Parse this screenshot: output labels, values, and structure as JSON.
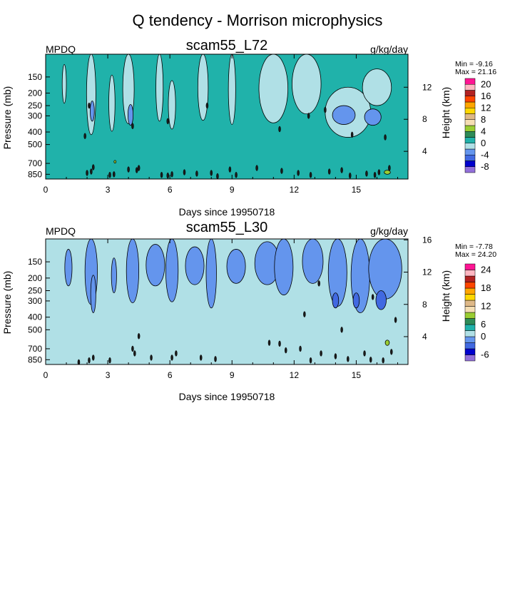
{
  "title": "Q tendency - Morrison microphysics",
  "panels": [
    {
      "id": "l72",
      "left_label": "MPDQ",
      "center_title": "scam55_L72",
      "units": "g/kg/day",
      "stats_min": "Min =  -9.16",
      "stats_max": "Max =  21.16",
      "xlabel": "Days since 19950718",
      "ylabel": "Pressure (mb)",
      "y2label": "Height (km)",
      "background": "#20b2aa",
      "xticks": [
        {
          "v": 0,
          "l": "0"
        },
        {
          "v": 3,
          "l": "3"
        },
        {
          "v": 6,
          "l": "6"
        },
        {
          "v": 9,
          "l": "9"
        },
        {
          "v": 12,
          "l": "12"
        },
        {
          "v": 15,
          "l": "15"
        }
      ],
      "yticks": [
        {
          "v": 150,
          "l": "150"
        },
        {
          "v": 200,
          "l": "200"
        },
        {
          "v": 250,
          "l": "250"
        },
        {
          "v": 300,
          "l": "300"
        },
        {
          "v": 400,
          "l": "400"
        },
        {
          "v": 500,
          "l": "500"
        },
        {
          "v": 700,
          "l": "700"
        },
        {
          "v": 850,
          "l": "850"
        }
      ],
      "y2ticks": [
        {
          "v": 4,
          "l": "4"
        },
        {
          "v": 8,
          "l": "8"
        },
        {
          "v": 12,
          "l": "12"
        }
      ],
      "colorbar": {
        "colors": [
          "#9370db",
          "#0000cd",
          "#4169e1",
          "#6495ed",
          "#b0e0e6",
          "#20b2aa",
          "#2e8b57",
          "#9acd32",
          "#f5deb3",
          "#deb887",
          "#ffd700",
          "#ffa500",
          "#ff4500",
          "#b22222",
          "#ffb6c1",
          "#ff1493"
        ],
        "labels": [
          {
            "after": 1,
            "t": "-8"
          },
          {
            "after": 3,
            "t": "-4"
          },
          {
            "after": 5,
            "t": "0"
          },
          {
            "after": 7,
            "t": "4"
          },
          {
            "after": 9,
            "t": "8"
          },
          {
            "after": 11,
            "t": "12"
          },
          {
            "after": 13,
            "t": "16"
          },
          {
            "after": 15,
            "t": "20"
          }
        ]
      },
      "features": [
        {
          "c": "#b0e0e6",
          "day": 0.9,
          "p": 180,
          "w": 0.2,
          "h": 120
        },
        {
          "c": "#b0e0e6",
          "day": 2.2,
          "p": 230,
          "w": 0.45,
          "h": 380
        },
        {
          "c": "#6495ed",
          "day": 2.25,
          "p": 280,
          "w": 0.2,
          "h": 100
        },
        {
          "c": "#b0e0e6",
          "day": 3.2,
          "p": 270,
          "w": 0.3,
          "h": 250
        },
        {
          "c": "#b0e0e6",
          "day": 4.0,
          "p": 220,
          "w": 0.55,
          "h": 250
        },
        {
          "c": "#6495ed",
          "day": 4.1,
          "p": 300,
          "w": 0.25,
          "h": 110
        },
        {
          "c": "#b0e0e6",
          "day": 5.5,
          "p": 200,
          "w": 0.35,
          "h": 260
        },
        {
          "c": "#b0e0e6",
          "day": 6.1,
          "p": 270,
          "w": 0.35,
          "h": 220
        },
        {
          "c": "#b0e0e6",
          "day": 7.6,
          "p": 200,
          "w": 0.5,
          "h": 250
        },
        {
          "c": "#b0e0e6",
          "day": 9.0,
          "p": 200,
          "w": 0.35,
          "h": 300
        },
        {
          "c": "#b0e0e6",
          "day": 11.0,
          "p": 190,
          "w": 1.4,
          "h": 300
        },
        {
          "c": "#b0e0e6",
          "day": 12.6,
          "p": 190,
          "w": 1.4,
          "h": 200
        },
        {
          "c": "#b0e0e6",
          "day": 14.6,
          "p": 310,
          "w": 2.2,
          "h": 260
        },
        {
          "c": "#6495ed",
          "day": 14.4,
          "p": 300,
          "w": 1.1,
          "h": 100
        },
        {
          "c": "#6495ed",
          "day": 15.8,
          "p": 310,
          "w": 0.8,
          "h": 90
        },
        {
          "c": "#b0e0e6",
          "day": 16.0,
          "p": 190,
          "w": 1.4,
          "h": 120
        },
        {
          "c": "#9acd32",
          "day": 16.5,
          "p": 820,
          "w": 0.3,
          "h": 60
        },
        {
          "c": "#9acd32",
          "day": 3.35,
          "p": 680,
          "w": 0.1,
          "h": 30
        }
      ],
      "specks": [
        [
          2.0,
          830
        ],
        [
          2.2,
          810
        ],
        [
          2.3,
          750
        ],
        [
          3.1,
          860
        ],
        [
          3.3,
          850
        ],
        [
          4.0,
          780
        ],
        [
          4.4,
          790
        ],
        [
          4.5,
          760
        ],
        [
          5.6,
          860
        ],
        [
          5.9,
          870
        ],
        [
          6.1,
          850
        ],
        [
          6.7,
          820
        ],
        [
          7.3,
          840
        ],
        [
          8.0,
          830
        ],
        [
          8.3,
          880
        ],
        [
          8.9,
          780
        ],
        [
          9.2,
          860
        ],
        [
          10.2,
          760
        ],
        [
          11.4,
          800
        ],
        [
          12.2,
          830
        ],
        [
          12.8,
          860
        ],
        [
          13.7,
          810
        ],
        [
          14.3,
          790
        ],
        [
          14.7,
          870
        ],
        [
          15.5,
          840
        ],
        [
          15.9,
          860
        ],
        [
          16.1,
          820
        ],
        [
          16.6,
          760
        ],
        [
          1.9,
          430
        ],
        [
          2.1,
          250
        ],
        [
          4.2,
          360
        ],
        [
          5.9,
          330
        ],
        [
          7.8,
          250
        ],
        [
          11.3,
          380
        ],
        [
          12.7,
          300
        ],
        [
          13.5,
          270
        ],
        [
          14.8,
          420
        ],
        [
          16.4,
          440
        ]
      ]
    },
    {
      "id": "l30",
      "left_label": "MPDQ",
      "center_title": "scam55_L30",
      "units": "g/kg/day",
      "stats_min": "Min =  -7.78",
      "stats_max": "Max =  24.20",
      "xlabel": "Days since 19950718",
      "ylabel": "Pressure (mb)",
      "y2label": "Height (km)",
      "background": "#b0e0e6",
      "xticks": [
        {
          "v": 0,
          "l": "0"
        },
        {
          "v": 3,
          "l": "3"
        },
        {
          "v": 6,
          "l": "6"
        },
        {
          "v": 9,
          "l": "9"
        },
        {
          "v": 12,
          "l": "12"
        },
        {
          "v": 15,
          "l": "15"
        }
      ],
      "yticks": [
        {
          "v": 150,
          "l": "150"
        },
        {
          "v": 200,
          "l": "200"
        },
        {
          "v": 250,
          "l": "250"
        },
        {
          "v": 300,
          "l": "300"
        },
        {
          "v": 400,
          "l": "400"
        },
        {
          "v": 500,
          "l": "500"
        },
        {
          "v": 700,
          "l": "700"
        },
        {
          "v": 850,
          "l": "850"
        }
      ],
      "y2ticks": [
        {
          "v": 4,
          "l": "4"
        },
        {
          "v": 8,
          "l": "8"
        },
        {
          "v": 12,
          "l": "12"
        },
        {
          "v": 16,
          "l": "16"
        }
      ],
      "colorbar": {
        "colors": [
          "#9370db",
          "#0000cd",
          "#4169e1",
          "#6495ed",
          "#b0e0e6",
          "#20b2aa",
          "#2e8b57",
          "#9acd32",
          "#f5deb3",
          "#deb887",
          "#ffd700",
          "#ffa500",
          "#ff4500",
          "#b22222",
          "#ffb6c1",
          "#ff1493"
        ],
        "labels": [
          {
            "after": 1,
            "t": "-6"
          },
          {
            "after": 4,
            "t": "0"
          },
          {
            "after": 6,
            "t": "6"
          },
          {
            "after": 9,
            "t": "12"
          },
          {
            "after": 12,
            "t": "18"
          },
          {
            "after": 15,
            "t": "24"
          }
        ]
      },
      "features": [
        {
          "c": "#6495ed",
          "day": 1.1,
          "p": 175,
          "w": 0.35,
          "h": 110
        },
        {
          "c": "#6495ed",
          "day": 2.2,
          "p": 180,
          "w": 0.6,
          "h": 280
        },
        {
          "c": "#6495ed",
          "day": 2.3,
          "p": 280,
          "w": 0.25,
          "h": 180
        },
        {
          "c": "#6495ed",
          "day": 3.3,
          "p": 200,
          "w": 0.25,
          "h": 120
        },
        {
          "c": "#6495ed",
          "day": 4.2,
          "p": 180,
          "w": 0.6,
          "h": 260
        },
        {
          "c": "#6495ed",
          "day": 5.3,
          "p": 170,
          "w": 0.9,
          "h": 120
        },
        {
          "c": "#6495ed",
          "day": 6.1,
          "p": 180,
          "w": 0.6,
          "h": 250
        },
        {
          "c": "#6495ed",
          "day": 7.2,
          "p": 170,
          "w": 0.9,
          "h": 110
        },
        {
          "c": "#6495ed",
          "day": 8.0,
          "p": 180,
          "w": 0.5,
          "h": 320
        },
        {
          "c": "#6495ed",
          "day": 9.2,
          "p": 170,
          "w": 0.9,
          "h": 100
        },
        {
          "c": "#6495ed",
          "day": 10.7,
          "p": 165,
          "w": 1.2,
          "h": 120
        },
        {
          "c": "#6495ed",
          "day": 11.5,
          "p": 160,
          "w": 0.9,
          "h": 220
        },
        {
          "c": "#6495ed",
          "day": 12.9,
          "p": 120,
          "w": 1.0,
          "h": 200
        },
        {
          "c": "#6495ed",
          "day": 14.1,
          "p": 140,
          "w": 0.9,
          "h": 380
        },
        {
          "c": "#6495ed",
          "day": 15.2,
          "p": 160,
          "w": 0.9,
          "h": 420
        },
        {
          "c": "#6495ed",
          "day": 16.4,
          "p": 150,
          "w": 1.6,
          "h": 280
        },
        {
          "c": "#4169e1",
          "day": 14.0,
          "p": 300,
          "w": 0.3,
          "h": 80
        },
        {
          "c": "#4169e1",
          "day": 15.0,
          "p": 300,
          "w": 0.3,
          "h": 80
        },
        {
          "c": "#4169e1",
          "day": 16.2,
          "p": 300,
          "w": 0.5,
          "h": 100
        },
        {
          "c": "#9acd32",
          "day": 16.5,
          "p": 630,
          "w": 0.2,
          "h": 60
        }
      ],
      "specks": [
        [
          1.6,
          890
        ],
        [
          2.1,
          860
        ],
        [
          2.3,
          820
        ],
        [
          3.1,
          860
        ],
        [
          4.2,
          700
        ],
        [
          4.3,
          760
        ],
        [
          4.5,
          560
        ],
        [
          5.1,
          820
        ],
        [
          6.1,
          820
        ],
        [
          6.3,
          760
        ],
        [
          7.5,
          820
        ],
        [
          8.2,
          840
        ],
        [
          10.8,
          630
        ],
        [
          11.3,
          640
        ],
        [
          11.6,
          720
        ],
        [
          12.3,
          700
        ],
        [
          12.8,
          860
        ],
        [
          13.3,
          760
        ],
        [
          14.0,
          800
        ],
        [
          14.6,
          840
        ],
        [
          15.4,
          760
        ],
        [
          15.7,
          850
        ],
        [
          16.3,
          860
        ],
        [
          16.7,
          740
        ],
        [
          12.5,
          380
        ],
        [
          13.2,
          220
        ],
        [
          14.3,
          500
        ],
        [
          15.8,
          280
        ],
        [
          16.9,
          420
        ]
      ]
    }
  ]
}
